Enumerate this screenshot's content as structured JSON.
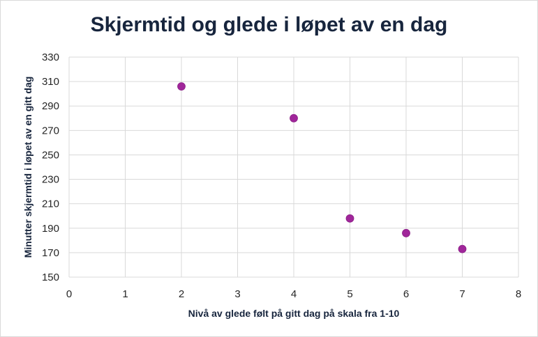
{
  "chart_data": {
    "type": "scatter",
    "title": "Skjermtid og glede i løpet av en dag",
    "xlabel": "Nivå av glede følt på gitt dag på skala fra 1-10",
    "ylabel": "Minutter skjermtid i løpet av en gitt dag",
    "xlim": [
      0,
      8
    ],
    "ylim": [
      150,
      330
    ],
    "xticks": [
      "0",
      "1",
      "2",
      "3",
      "4",
      "5",
      "6",
      "7",
      "8"
    ],
    "yticks": [
      "150",
      "170",
      "190",
      "210",
      "230",
      "250",
      "270",
      "290",
      "310",
      "330"
    ],
    "grid": true,
    "legend": "none",
    "series": [
      {
        "color": "#a0269a",
        "points": [
          {
            "x": 2,
            "y": 306
          },
          {
            "x": 4,
            "y": 280
          },
          {
            "x": 5,
            "y": 198
          },
          {
            "x": 6,
            "y": 186
          },
          {
            "x": 7,
            "y": 173
          }
        ]
      }
    ]
  }
}
